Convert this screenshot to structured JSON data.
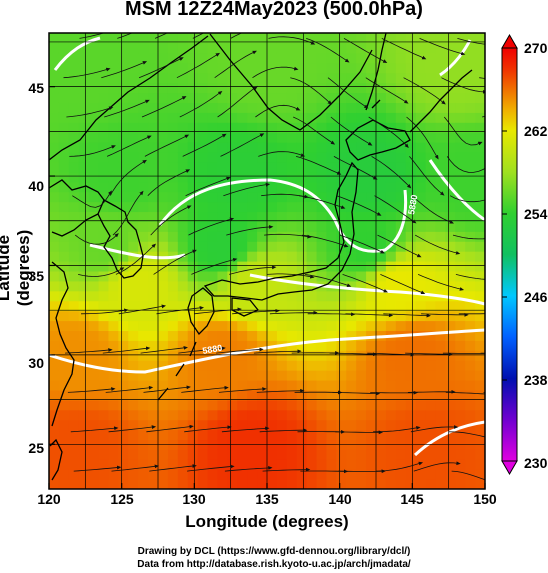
{
  "title": "MSM 12Z24May2023 (500.0hPa)",
  "xlabel": "Longitude (degrees)",
  "ylabel": "Latitude  (degrees)",
  "x_ticks": [
    "120",
    "125",
    "130",
    "135",
    "140",
    "145",
    "150"
  ],
  "y_ticks": [
    "45",
    "40",
    "35",
    "30",
    "25"
  ],
  "colorbar_ticks": [
    "270",
    "262",
    "254",
    "246",
    "238",
    "230"
  ],
  "footer": {
    "line1": "Drawing by DCL (https://www.gfd-dennou.org/library/dcl/)",
    "line2": "Data from http://database.rish.kyoto-u.ac.jp/arch/jmadata/"
  },
  "contour_label": "5880",
  "chart_data": {
    "type": "heatmap",
    "variable": "temperature (K) with wind streamlines at 500.0hPa",
    "xlim": [
      120,
      150
    ],
    "ylim": [
      22.5,
      48
    ],
    "x_ticks": [
      120,
      125,
      130,
      135,
      140,
      145,
      150
    ],
    "y_ticks": [
      25,
      30,
      35,
      40,
      45
    ],
    "colorbar": {
      "range": [
        230,
        270
      ],
      "ticks": [
        230,
        238,
        246,
        254,
        262,
        270
      ],
      "colors": {
        "230": "#e000e0",
        "234": "#7000d0",
        "238": "#0010b0",
        "242": "#0060ff",
        "246": "#00c8ff",
        "250": "#10c060",
        "254": "#30d030",
        "258": "#a0e020",
        "262": "#e8e800",
        "264": "#f0b000",
        "266": "#f07000",
        "268": "#f03000",
        "270": "#f00000"
      }
    },
    "grid": true,
    "field_samples": [
      {
        "lon": 122,
        "lat": 46,
        "value": 255.5
      },
      {
        "lon": 135,
        "lat": 46,
        "value": 256.0
      },
      {
        "lon": 148,
        "lat": 46,
        "value": 257.5
      },
      {
        "lon": 125,
        "lat": 40,
        "value": 254.5
      },
      {
        "lon": 133,
        "lat": 40,
        "value": 253.5
      },
      {
        "lon": 142,
        "lat": 40,
        "value": 253.0
      },
      {
        "lon": 149,
        "lat": 40,
        "value": 254.5
      },
      {
        "lon": 124,
        "lat": 36,
        "value": 256.0
      },
      {
        "lon": 132,
        "lat": 36,
        "value": 253.5
      },
      {
        "lon": 142,
        "lat": 36,
        "value": 254.0
      },
      {
        "lon": 126,
        "lat": 34,
        "value": 261.0
      },
      {
        "lon": 134,
        "lat": 34,
        "value": 260.0
      },
      {
        "lon": 144,
        "lat": 34,
        "value": 262.0
      },
      {
        "lon": 122,
        "lat": 30,
        "value": 265.0
      },
      {
        "lon": 132,
        "lat": 30,
        "value": 265.5
      },
      {
        "lon": 145,
        "lat": 30,
        "value": 266.0
      },
      {
        "lon": 122,
        "lat": 25,
        "value": 267.0
      },
      {
        "lon": 134,
        "lat": 25,
        "value": 268.0
      },
      {
        "lon": 146,
        "lat": 25,
        "value": 267.0
      }
    ]
  }
}
